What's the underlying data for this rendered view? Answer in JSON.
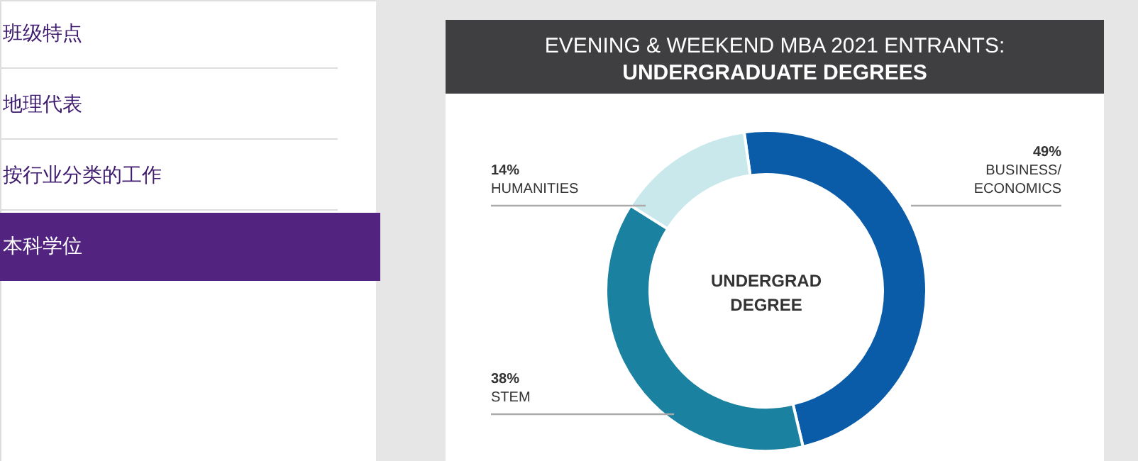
{
  "chart_data": {
    "type": "donut",
    "title": "EVENING & WEEKEND MBA 2021 ENTRANTS:",
    "subtitle": "UNDERGRADUATE DEGREES",
    "categories": [
      "BUSINESS/ECONOMICS",
      "STEM",
      "HUMANITIES"
    ],
    "values": [
      49,
      38,
      14
    ],
    "value_labels": [
      "49%",
      "38%",
      "14%"
    ],
    "colors": [
      "#0a5ca8",
      "#1a82a0",
      "#c8e8ec"
    ],
    "legend": false,
    "annotations": [
      "UNDERGRAD DEGREE",
      "班级特点",
      "地理代表",
      "按行业分类的工作",
      "本科学位"
    ]
  }
}
